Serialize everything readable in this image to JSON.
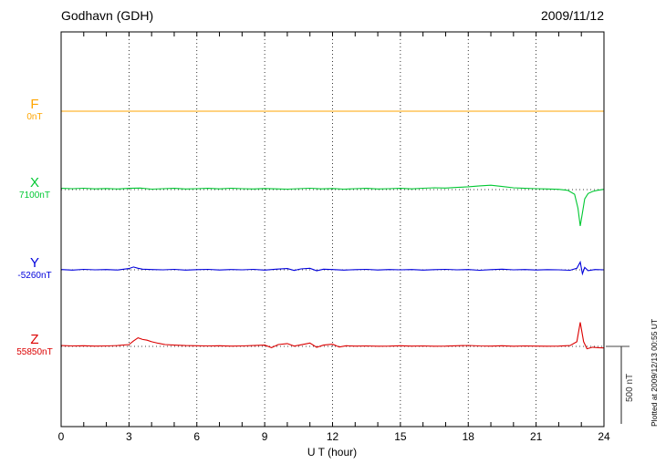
{
  "header": {
    "title": "Godhavn (GDH)",
    "date": "2009/11/12"
  },
  "footer": {
    "plotted_at": "Plotted at 2009/12/13 00:55 UT"
  },
  "chart_data": {
    "type": "line",
    "title": "Godhavn (GDH)",
    "subtitle": "2009/11/12",
    "xlabel": "U T (hour)",
    "x_range": [
      0,
      24
    ],
    "x_ticks": [
      0,
      3,
      6,
      9,
      12,
      15,
      18,
      21,
      24
    ],
    "grid": "dotted vertical at 3-hour marks, dotted horizontal baseline per channel",
    "scale_bar": {
      "label": "500 nT",
      "nT": 500
    },
    "series": [
      {
        "name": "F",
        "baseline_label": "0nT",
        "color": "#FFA500",
        "points": [
          [
            0,
            0
          ],
          [
            24,
            0
          ]
        ]
      },
      {
        "name": "X",
        "baseline_label": "7100nT",
        "color": "#00C832",
        "points": [
          [
            0,
            8
          ],
          [
            0.5,
            6
          ],
          [
            1,
            9
          ],
          [
            1.5,
            5
          ],
          [
            2,
            7
          ],
          [
            2.5,
            4
          ],
          [
            3,
            8
          ],
          [
            3.5,
            10
          ],
          [
            4,
            3
          ],
          [
            4.5,
            6
          ],
          [
            5,
            8
          ],
          [
            5.5,
            4
          ],
          [
            6,
            6
          ],
          [
            6.5,
            8
          ],
          [
            7,
            5
          ],
          [
            7.5,
            9
          ],
          [
            8,
            6
          ],
          [
            8.5,
            4
          ],
          [
            9,
            7
          ],
          [
            9.5,
            5
          ],
          [
            10,
            3
          ],
          [
            10.5,
            6
          ],
          [
            11,
            9
          ],
          [
            11.5,
            5
          ],
          [
            12,
            7
          ],
          [
            12.5,
            3
          ],
          [
            13,
            6
          ],
          [
            13.5,
            8
          ],
          [
            14,
            4
          ],
          [
            14.5,
            6
          ],
          [
            15,
            8
          ],
          [
            15.5,
            5
          ],
          [
            16,
            9
          ],
          [
            16.5,
            12
          ],
          [
            17,
            10
          ],
          [
            17.5,
            14
          ],
          [
            18,
            18
          ],
          [
            18.5,
            24
          ],
          [
            19,
            28
          ],
          [
            19.5,
            20
          ],
          [
            20,
            12
          ],
          [
            20.5,
            8
          ],
          [
            21,
            6
          ],
          [
            21.5,
            4
          ],
          [
            22,
            2
          ],
          [
            22.4,
            -5
          ],
          [
            22.7,
            -30
          ],
          [
            22.85,
            -120
          ],
          [
            22.95,
            -235
          ],
          [
            23.05,
            -150
          ],
          [
            23.15,
            -60
          ],
          [
            23.3,
            -25
          ],
          [
            23.5,
            -12
          ],
          [
            23.7,
            -5
          ],
          [
            24,
            2
          ]
        ]
      },
      {
        "name": "Y",
        "baseline_label": "-5260nT",
        "color": "#0000DC",
        "points": [
          [
            0,
            2
          ],
          [
            0.5,
            -2
          ],
          [
            1,
            3
          ],
          [
            1.5,
            0
          ],
          [
            2,
            2
          ],
          [
            2.5,
            -1
          ],
          [
            3,
            8
          ],
          [
            3.2,
            18
          ],
          [
            3.4,
            10
          ],
          [
            3.6,
            4
          ],
          [
            4,
            2
          ],
          [
            4.5,
            0
          ],
          [
            5,
            3
          ],
          [
            5.5,
            -2
          ],
          [
            6,
            1
          ],
          [
            6.5,
            3
          ],
          [
            7,
            -1
          ],
          [
            7.5,
            2
          ],
          [
            8,
            0
          ],
          [
            8.5,
            3
          ],
          [
            9,
            -2
          ],
          [
            9.5,
            4
          ],
          [
            10,
            8
          ],
          [
            10.3,
            -4
          ],
          [
            10.6,
            6
          ],
          [
            11,
            10
          ],
          [
            11.3,
            -6
          ],
          [
            11.6,
            4
          ],
          [
            12,
            2
          ],
          [
            12.5,
            -2
          ],
          [
            13,
            1
          ],
          [
            13.5,
            3
          ],
          [
            14,
            -1
          ],
          [
            14.5,
            2
          ],
          [
            15,
            0
          ],
          [
            15.5,
            2
          ],
          [
            16,
            -2
          ],
          [
            16.5,
            1
          ],
          [
            17,
            3
          ],
          [
            17.5,
            0
          ],
          [
            18,
            2
          ],
          [
            18.5,
            -3
          ],
          [
            19,
            1
          ],
          [
            19.5,
            4
          ],
          [
            20,
            0
          ],
          [
            20.5,
            2
          ],
          [
            21,
            -1
          ],
          [
            21.5,
            1
          ],
          [
            22,
            0
          ],
          [
            22.5,
            -3
          ],
          [
            22.8,
            10
          ],
          [
            22.95,
            50
          ],
          [
            23.05,
            -25
          ],
          [
            23.15,
            15
          ],
          [
            23.3,
            -5
          ],
          [
            23.6,
            2
          ],
          [
            24,
            0
          ]
        ]
      },
      {
        "name": "Z",
        "baseline_label": "55850nT",
        "color": "#DC0000",
        "points": [
          [
            0,
            5
          ],
          [
            0.5,
            3
          ],
          [
            1,
            4
          ],
          [
            1.5,
            2
          ],
          [
            2,
            3
          ],
          [
            2.5,
            5
          ],
          [
            3,
            12
          ],
          [
            3.2,
            35
          ],
          [
            3.4,
            55
          ],
          [
            3.6,
            45
          ],
          [
            3.8,
            40
          ],
          [
            4,
            30
          ],
          [
            4.3,
            20
          ],
          [
            4.6,
            12
          ],
          [
            5,
            8
          ],
          [
            5.5,
            5
          ],
          [
            6,
            4
          ],
          [
            6.5,
            3
          ],
          [
            7,
            4
          ],
          [
            7.5,
            2
          ],
          [
            8,
            3
          ],
          [
            8.5,
            5
          ],
          [
            9,
            8
          ],
          [
            9.3,
            -8
          ],
          [
            9.6,
            12
          ],
          [
            10,
            18
          ],
          [
            10.3,
            2
          ],
          [
            10.6,
            10
          ],
          [
            11,
            22
          ],
          [
            11.3,
            -6
          ],
          [
            11.6,
            8
          ],
          [
            12,
            14
          ],
          [
            12.3,
            -4
          ],
          [
            12.6,
            4
          ],
          [
            13,
            2
          ],
          [
            13.5,
            3
          ],
          [
            14,
            1
          ],
          [
            14.5,
            2
          ],
          [
            15,
            4
          ],
          [
            15.5,
            2
          ],
          [
            16,
            3
          ],
          [
            16.5,
            1
          ],
          [
            17,
            2
          ],
          [
            17.5,
            4
          ],
          [
            18,
            6
          ],
          [
            18.5,
            3
          ],
          [
            19,
            2
          ],
          [
            19.5,
            4
          ],
          [
            20,
            1
          ],
          [
            20.5,
            3
          ],
          [
            21,
            2
          ],
          [
            21.5,
            1
          ],
          [
            22,
            2
          ],
          [
            22.5,
            5
          ],
          [
            22.8,
            30
          ],
          [
            22.95,
            155
          ],
          [
            23.1,
            30
          ],
          [
            23.25,
            -15
          ],
          [
            23.5,
            -5
          ],
          [
            23.75,
            -8
          ],
          [
            24,
            -10
          ]
        ]
      }
    ]
  }
}
